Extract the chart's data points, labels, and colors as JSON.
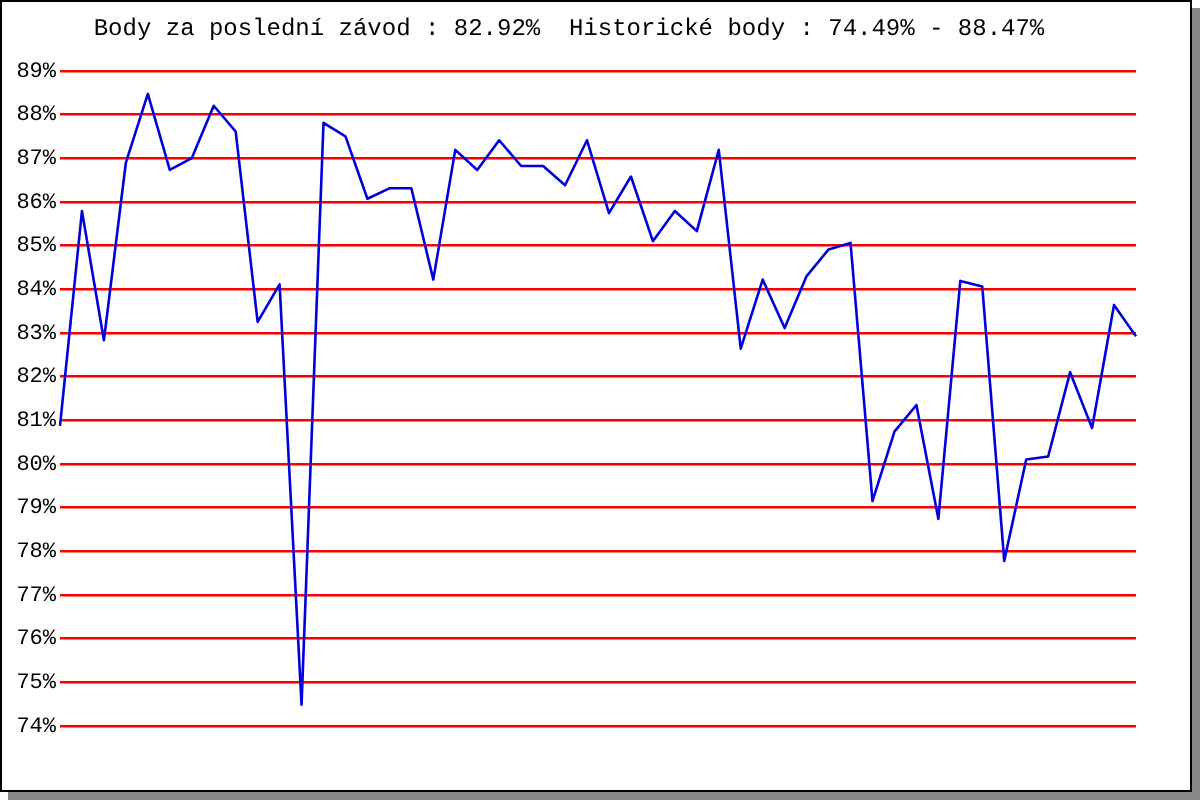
{
  "chart_data": {
    "type": "line",
    "title": "Body za poslední závod : 82.92%  Historické body : 74.49% - 88.47%",
    "categories": [
      null,
      null,
      null,
      null,
      null,
      null,
      null,
      null,
      null,
      null,
      null,
      null,
      null,
      null,
      null,
      null,
      null,
      null,
      null,
      null,
      null,
      null,
      null,
      null,
      null,
      null,
      null,
      null,
      null,
      null,
      null,
      null,
      null,
      null,
      null,
      null,
      null,
      null,
      null,
      null,
      null,
      null,
      null,
      null,
      null,
      null,
      null,
      null,
      null,
      null
    ],
    "series": [
      {
        "color": "#0000dd",
        "values": [
          80.87,
          85.79,
          82.83,
          86.9,
          88.47,
          86.73,
          87.0,
          88.2,
          87.61,
          83.25,
          84.11,
          74.49,
          87.81,
          87.5,
          86.07,
          86.31,
          86.31,
          84.22,
          87.19,
          86.73,
          87.41,
          86.82,
          86.82,
          86.38,
          87.41,
          85.74,
          86.58,
          85.1,
          85.79,
          85.33,
          87.19,
          82.64,
          84.22,
          83.11,
          84.3,
          84.91,
          85.06,
          79.15,
          80.74,
          81.35,
          78.74,
          84.19,
          84.06,
          77.78,
          80.1,
          80.17,
          82.1,
          80.82,
          83.64,
          82.92
        ]
      }
    ],
    "ylim": [
      74,
      89
    ],
    "yticks": [
      {
        "value": 74,
        "label": "74%"
      },
      {
        "value": 75,
        "label": "75%"
      },
      {
        "value": 76,
        "label": "76%"
      },
      {
        "value": 77,
        "label": "77%"
      },
      {
        "value": 78,
        "label": "78%"
      },
      {
        "value": 79,
        "label": "79%"
      },
      {
        "value": 80,
        "label": "80%"
      },
      {
        "value": 81,
        "label": "81%"
      },
      {
        "value": 82,
        "label": "82%"
      },
      {
        "value": 83,
        "label": "83%"
      },
      {
        "value": 84,
        "label": "84%"
      },
      {
        "value": 85,
        "label": "85%"
      },
      {
        "value": 86,
        "label": "86%"
      },
      {
        "value": 87,
        "label": "87%"
      },
      {
        "value": 88,
        "label": "88%"
      },
      {
        "value": 89,
        "label": "89%"
      }
    ],
    "grid": "y",
    "legend": false,
    "tick_labels": "y",
    "marker": "none",
    "line_style": "solid"
  }
}
